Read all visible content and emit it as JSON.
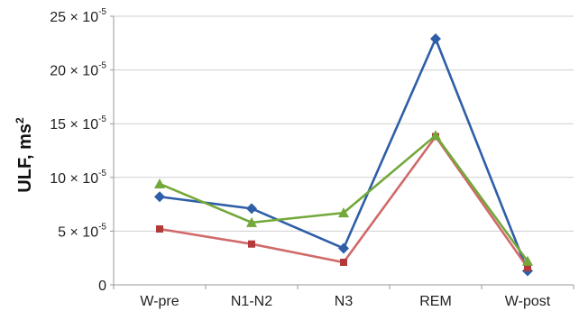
{
  "chart_data": {
    "type": "line",
    "categories": [
      "W-pre",
      "N1-N2",
      "N3",
      "REM",
      "W-post"
    ],
    "ylabel": "ULF, ms",
    "ylabel_superscript": "2",
    "ylim": [
      0,
      25
    ],
    "y_ticks": [
      {
        "value": 0,
        "mantissa": "0",
        "exponent": ""
      },
      {
        "value": 5,
        "mantissa": "5 × 10",
        "exponent": "-5"
      },
      {
        "value": 10,
        "mantissa": "10 × 10",
        "exponent": "-5"
      },
      {
        "value": 15,
        "mantissa": "15 × 10",
        "exponent": "-5"
      },
      {
        "value": 20,
        "mantissa": "20 × 10",
        "exponent": "-5"
      },
      {
        "value": 25,
        "mantissa": "25 × 10",
        "exponent": "-5"
      }
    ],
    "y_unit_note": "values in units of 10^-5 ms²",
    "grid": true,
    "legend": "none",
    "series": [
      {
        "color": "#2e5ea8",
        "marker": "diamond",
        "values": [
          8.2,
          7.1,
          3.4,
          22.9,
          1.3
        ]
      },
      {
        "color": "#d06a6a",
        "marker": "square",
        "values": [
          5.2,
          3.8,
          2.1,
          13.8,
          1.6
        ]
      },
      {
        "color": "#73a83a",
        "marker": "triangle",
        "values": [
          9.4,
          5.8,
          6.7,
          13.9,
          2.2
        ]
      }
    ]
  }
}
